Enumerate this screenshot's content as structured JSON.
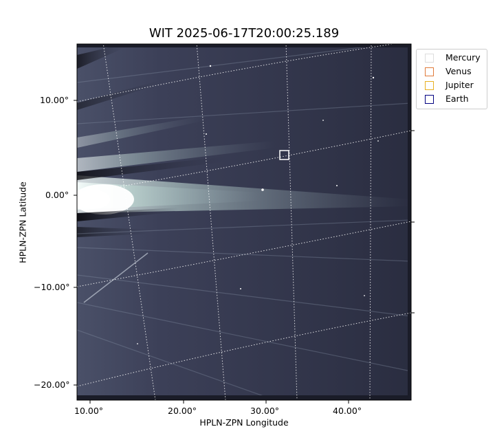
{
  "title": "WIT 2025-06-17T20:00:25.189",
  "axes": {
    "xlabel": "HPLN-ZPN Longitude",
    "ylabel": "HPLN-ZPN Latitude",
    "x_ticks": [
      "10.00°",
      "20.00°",
      "30.00°",
      "40.00°"
    ],
    "y_ticks": [
      "10.00°",
      "0.00°",
      "−10.00°",
      "−20.00°"
    ]
  },
  "legend": {
    "placement": "outside-right-top",
    "items": [
      {
        "label": "Mercury",
        "color": "#dddddd"
      },
      {
        "label": "Venus",
        "color": "#e07a3a"
      },
      {
        "label": "Jupiter",
        "color": "#e8b020"
      },
      {
        "label": "Earth",
        "color": "#000080"
      }
    ]
  },
  "image": {
    "description_colormap": "bone",
    "grid": true,
    "marker": "white square"
  }
}
